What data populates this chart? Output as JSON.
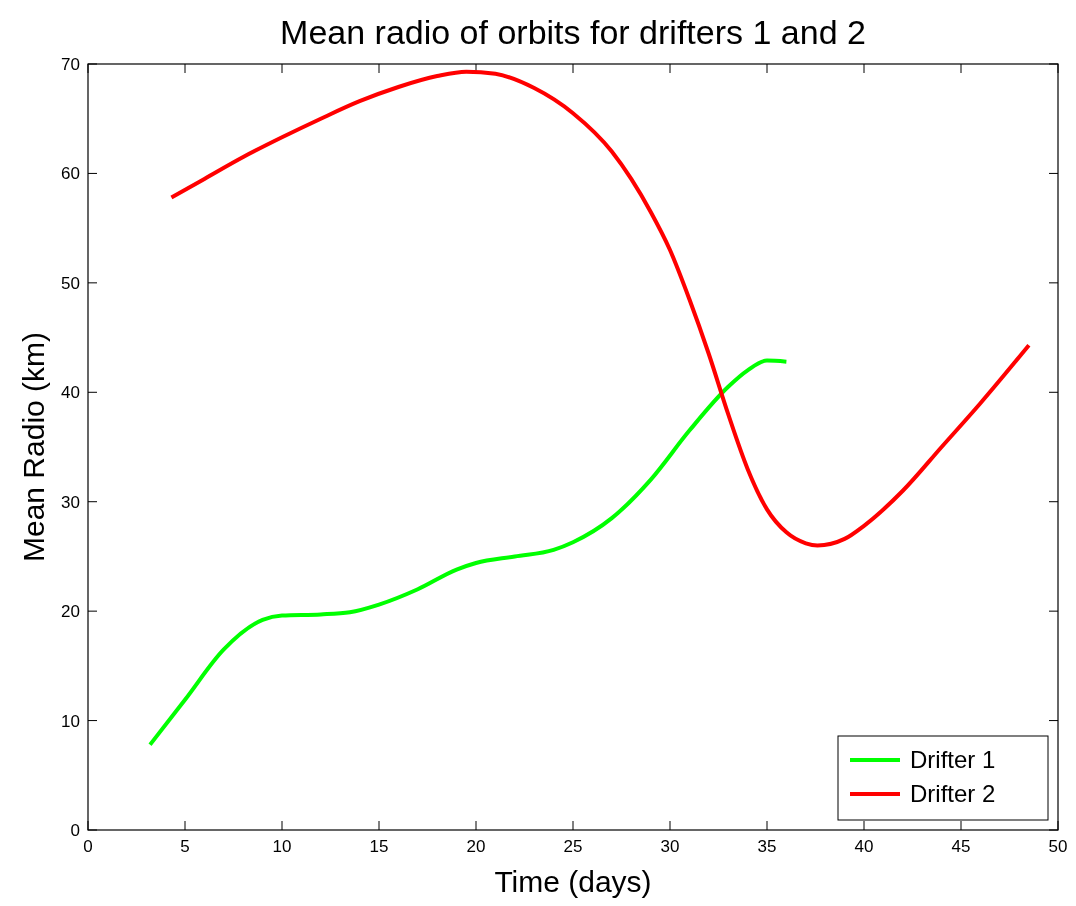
{
  "chart_data": {
    "type": "line",
    "title": "Mean radio of orbits for drifters 1 and 2",
    "xlabel": "Time (days)",
    "ylabel": "Mean Radio (km)",
    "xlim": [
      0,
      50
    ],
    "xticks": [
      0,
      5,
      10,
      15,
      20,
      25,
      30,
      35,
      40,
      45,
      50
    ],
    "ylim": [
      0,
      70
    ],
    "yticks": [
      0,
      10,
      20,
      30,
      40,
      50,
      60,
      70
    ],
    "grid": false,
    "legend": "bottom right",
    "line_style": "solid",
    "marker": "none",
    "series": [
      {
        "name": "Drifter 1",
        "color": "#00ff00",
        "x": [
          3.2,
          5,
          7,
          9,
          10,
          12,
          13.5,
          15,
          17,
          19,
          20,
          22,
          24,
          25,
          27,
          29,
          31,
          33,
          34,
          35,
          36
        ],
        "values": [
          7.8,
          11.9,
          16.5,
          19.2,
          19.6,
          19.7,
          19.9,
          20.6,
          22,
          23.8,
          24.4,
          25,
          25.6,
          26.3,
          28.5,
          32,
          36.5,
          40.5,
          42,
          42.9,
          42.8
        ]
      },
      {
        "name": "Drifter 2",
        "color": "#ff0000",
        "x": [
          4.3,
          6,
          8,
          10,
          12,
          14,
          16,
          18,
          19.5,
          21,
          23,
          25,
          27,
          29,
          30,
          31,
          32,
          33,
          34,
          35,
          36,
          37,
          37.6,
          39,
          40,
          42,
          44,
          46,
          48.5
        ],
        "values": [
          57.8,
          59.5,
          61.5,
          63.3,
          65,
          66.6,
          67.9,
          68.9,
          69.3,
          69.1,
          67.8,
          65.5,
          62,
          56.5,
          53,
          48.5,
          43.5,
          38,
          33,
          29.3,
          27.2,
          26.2,
          26,
          26.6,
          27.8,
          31,
          35,
          39,
          44.3
        ]
      }
    ]
  }
}
